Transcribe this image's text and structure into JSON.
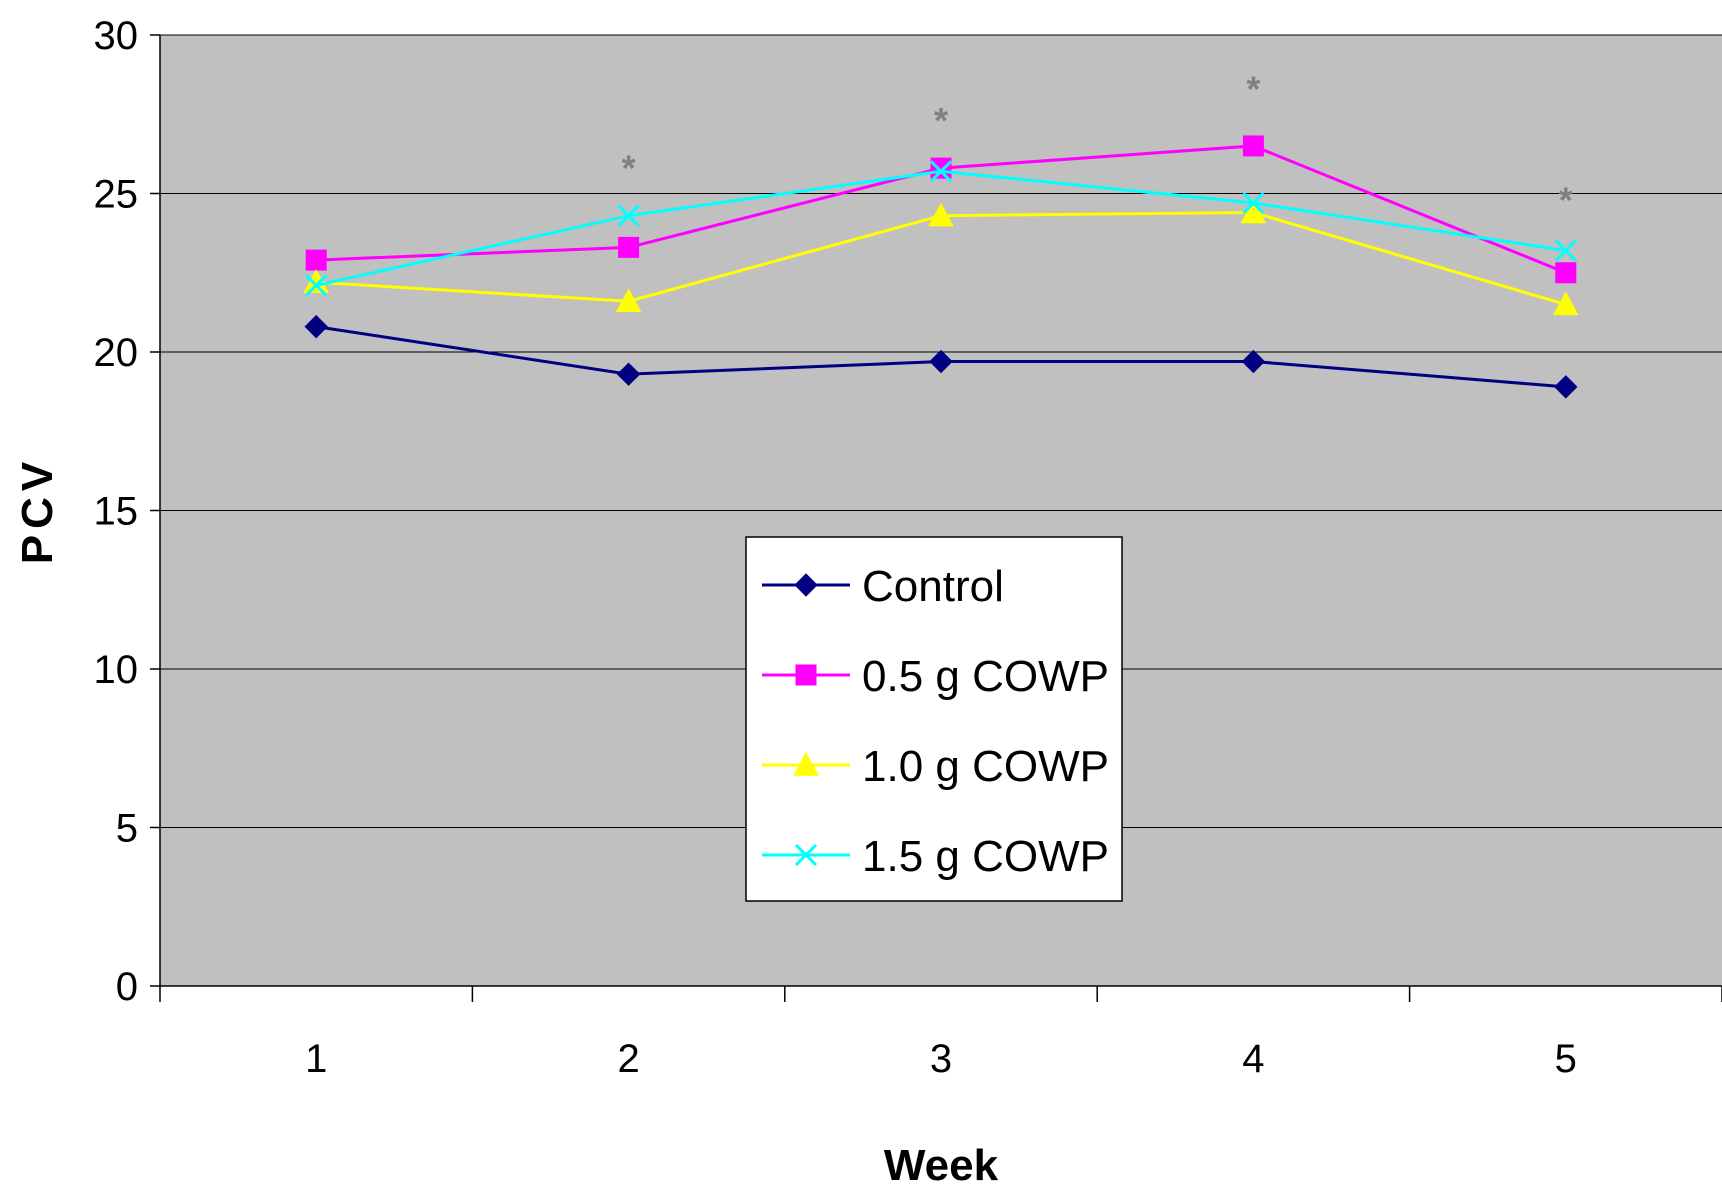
{
  "chart_data": {
    "type": "line",
    "xlabel": "Week",
    "ylabel": "PCV",
    "categories": [
      "1",
      "2",
      "3",
      "4",
      "5"
    ],
    "ylim": [
      0,
      30
    ],
    "yticks": [
      "0",
      "5",
      "10",
      "15",
      "20",
      "25",
      "30"
    ],
    "grid": true,
    "plot_background": "#c0c0c0",
    "legend_position": "center",
    "series": [
      {
        "name": "Control",
        "values": [
          20.8,
          19.3,
          19.7,
          19.7,
          18.9
        ],
        "color": "#000080",
        "marker": "diamond"
      },
      {
        "name": "0.5 g COWP",
        "values": [
          22.9,
          23.3,
          25.8,
          26.5,
          22.5
        ],
        "color": "#ff00ff",
        "marker": "square"
      },
      {
        "name": "1.0 g COWP",
        "values": [
          22.2,
          21.6,
          24.3,
          24.4,
          21.5
        ],
        "color": "#ffff00",
        "marker": "triangle"
      },
      {
        "name": "1.5 g COWP",
        "values": [
          22.1,
          24.3,
          25.7,
          24.7,
          23.2
        ],
        "color": "#00ffff",
        "marker": "x"
      }
    ],
    "annotations": [
      {
        "text": "*",
        "x": "2",
        "y": 26.1
      },
      {
        "text": "*",
        "x": "3",
        "y": 27.6
      },
      {
        "text": "*",
        "x": "4",
        "y": 28.6
      },
      {
        "text": "*",
        "x": "5",
        "y": 25.1
      }
    ]
  }
}
